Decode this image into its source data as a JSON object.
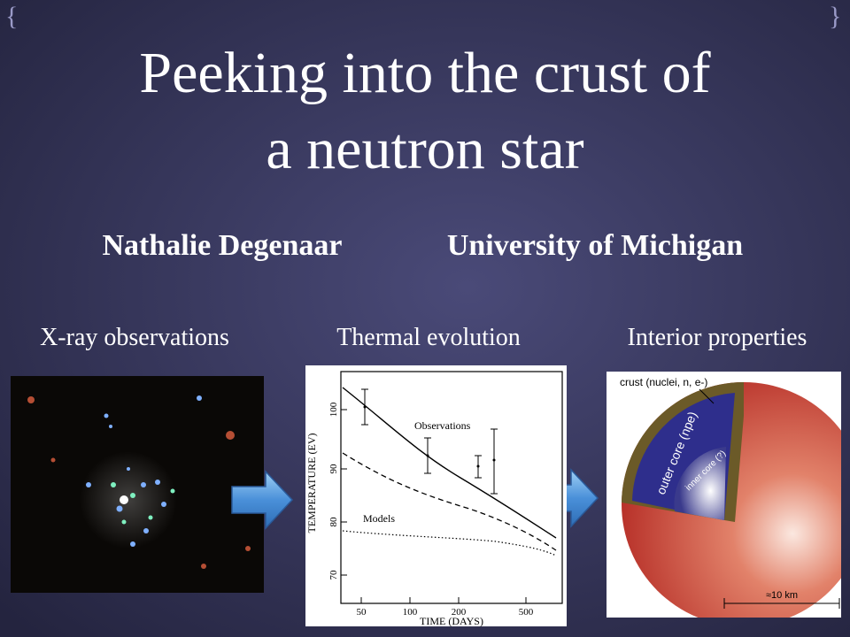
{
  "title": {
    "line1": "Peeking into the crust of",
    "line2": "a neutron star"
  },
  "author": "Nathalie Degenaar",
  "affiliation": "University of Michigan",
  "panels": [
    {
      "caption": "X-ray observations"
    },
    {
      "caption": "Thermal evolution",
      "y_axis_label": "TEMPERATURE (EV)",
      "x_axis_label": "TIME (DAYS)",
      "y_ticks": [
        "100",
        "90",
        "80",
        "70"
      ],
      "x_ticks": [
        "50",
        "100",
        "200",
        "500"
      ],
      "annotations": [
        "Observations",
        "Models"
      ]
    },
    {
      "caption": "Interior properties",
      "labels": [
        "crust (nuclei, n, e-)",
        "outer core (npe)",
        "inner core (?)",
        "≈10 km"
      ]
    }
  ]
}
